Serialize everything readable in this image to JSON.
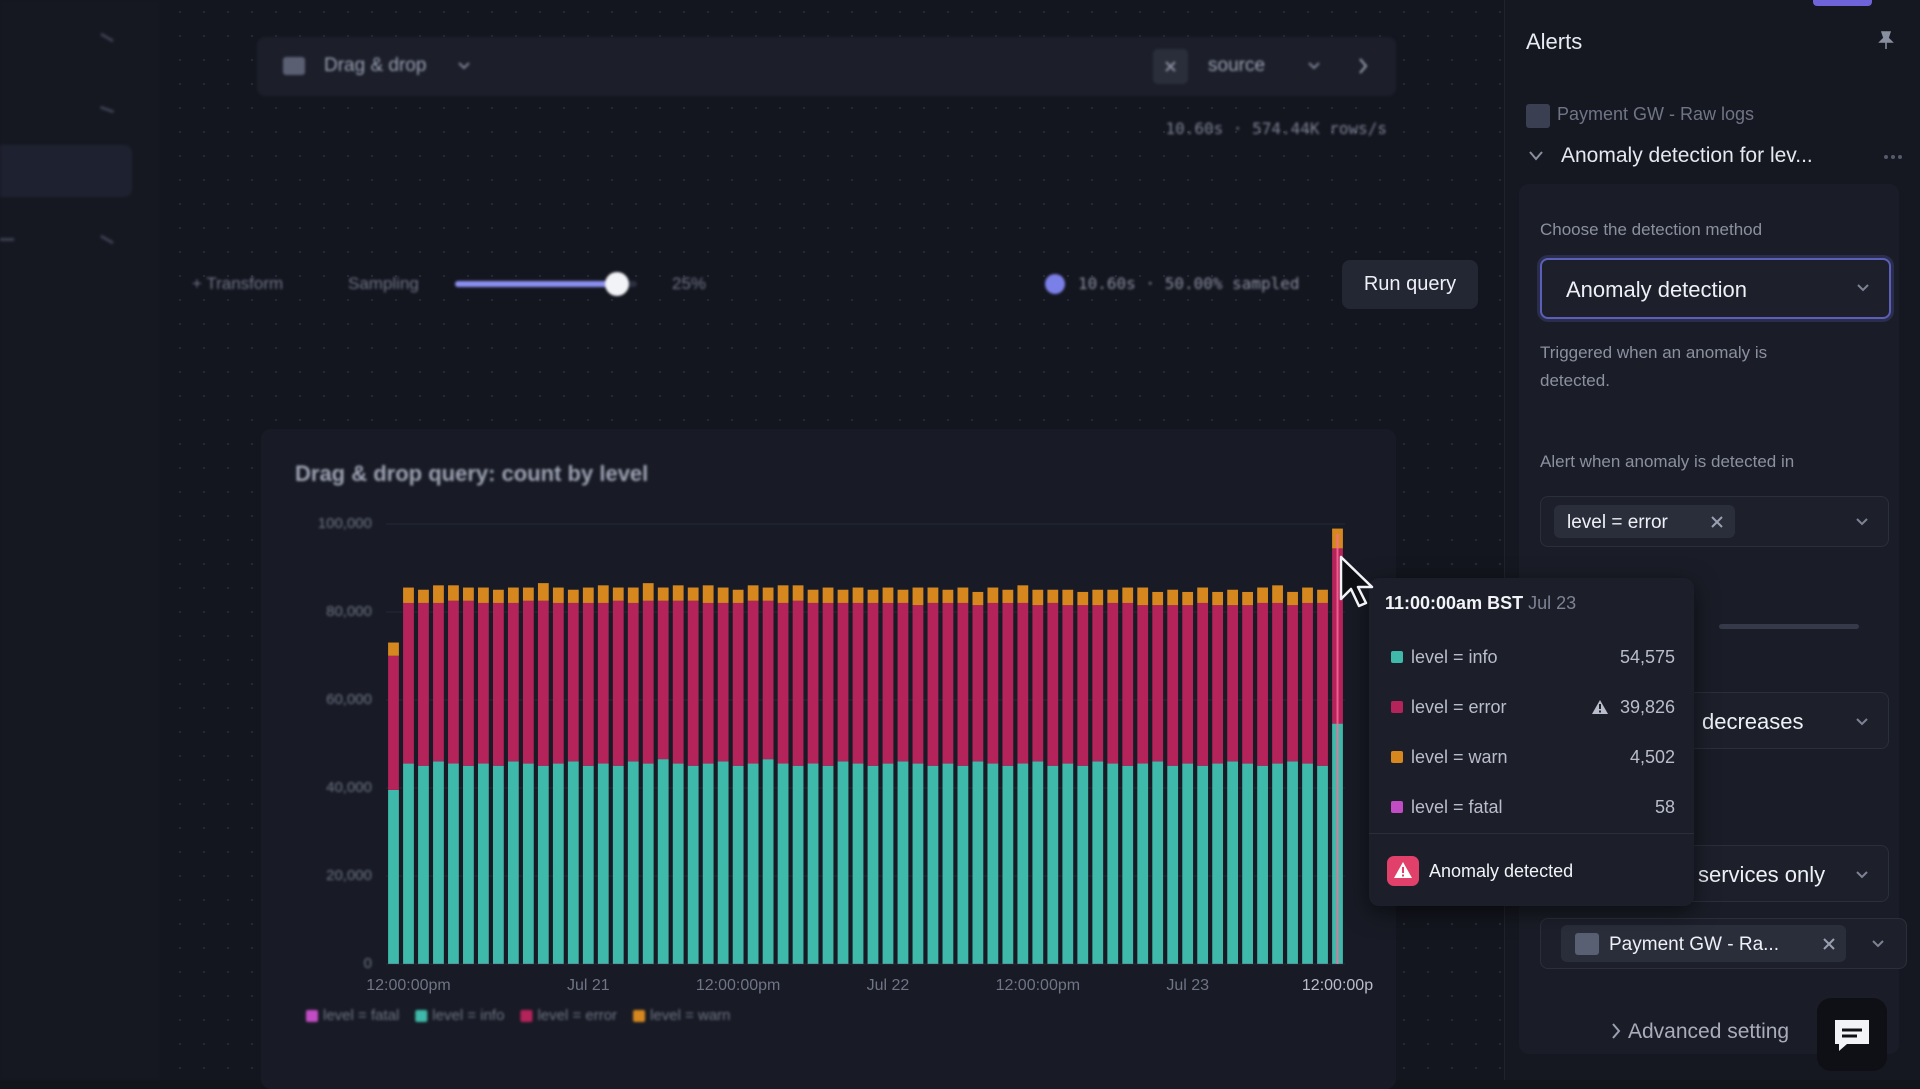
{
  "query_bar": {
    "mode": "Drag & drop",
    "field": "source",
    "stats": "10.60s · 574.44K rows/s"
  },
  "controls": {
    "transform": "+ Transform",
    "sampling": "Sampling",
    "sampling_value": "25%",
    "status": "10.60s · 50.00% sampled",
    "run_button": "Run query"
  },
  "chart_data": {
    "type": "bar",
    "stacked": true,
    "title": "Drag & drop query: count by level",
    "categories": [
      null,
      "12:00:00pm",
      null,
      null,
      null,
      null,
      null,
      null,
      null,
      null,
      null,
      null,
      null,
      "Jul 21",
      null,
      null,
      null,
      null,
      null,
      null,
      null,
      null,
      null,
      "12:00:00pm",
      null,
      null,
      null,
      null,
      null,
      null,
      null,
      null,
      null,
      "Jul 22",
      null,
      null,
      null,
      null,
      null,
      null,
      null,
      null,
      null,
      "12:00:00pm",
      null,
      null,
      null,
      null,
      null,
      null,
      null,
      null,
      null,
      "Jul 23",
      null,
      null,
      null,
      null,
      null,
      null,
      null,
      null,
      null,
      "12:00:00p"
    ],
    "series": [
      {
        "name": "level = fatal",
        "color": "#c24cc4",
        "values": [
          60,
          55,
          62,
          58,
          64,
          57,
          61,
          59,
          60,
          55,
          62,
          58,
          64,
          57,
          61,
          59,
          60,
          55,
          62,
          58,
          64,
          57,
          61,
          59,
          60,
          55,
          62,
          58,
          64,
          57,
          61,
          59,
          60,
          55,
          62,
          58,
          64,
          57,
          61,
          59,
          60,
          55,
          62,
          58,
          64,
          57,
          61,
          59,
          60,
          55,
          62,
          58,
          64,
          57,
          61,
          59,
          60,
          55,
          62,
          58,
          64,
          57,
          61,
          58
        ]
      },
      {
        "name": "level = info",
        "color": "#3fb9a9",
        "values": [
          39500,
          45500,
          45000,
          46000,
          45500,
          45000,
          45500,
          45000,
          46000,
          45500,
          45000,
          45500,
          46000,
          45000,
          45500,
          45000,
          46000,
          45500,
          46500,
          45500,
          45000,
          45500,
          46000,
          45000,
          45500,
          46500,
          45500,
          45000,
          45500,
          45000,
          46000,
          45500,
          45000,
          45500,
          46000,
          45500,
          45000,
          45500,
          45000,
          46000,
          45500,
          45000,
          45500,
          46000,
          45000,
          45500,
          45000,
          46000,
          45500,
          45000,
          45500,
          46000,
          45000,
          45500,
          45000,
          45500,
          46000,
          45500,
          45000,
          45500,
          46000,
          45500,
          45000,
          54575
        ]
      },
      {
        "name": "level = error",
        "color": "#b5235b",
        "values": [
          30500,
          36500,
          37000,
          36000,
          37000,
          37500,
          36500,
          37000,
          36000,
          37000,
          37500,
          36500,
          36000,
          37000,
          36500,
          37500,
          36000,
          37000,
          36000,
          37000,
          37500,
          36500,
          36000,
          37000,
          37000,
          36000,
          36500,
          37500,
          36500,
          37000,
          36000,
          36500,
          37000,
          36500,
          36000,
          36000,
          37000,
          36500,
          37000,
          35500,
          36500,
          37000,
          36500,
          35500,
          37000,
          36000,
          36500,
          35500,
          36500,
          37000,
          36000,
          35500,
          36500,
          36000,
          37000,
          36000,
          35500,
          36000,
          37000,
          36500,
          35500,
          36500,
          37000,
          39826
        ]
      },
      {
        "name": "level = warn",
        "color": "#d6881f",
        "values": [
          3000,
          3500,
          3000,
          4000,
          3500,
          3000,
          3500,
          3000,
          3500,
          3000,
          4000,
          3500,
          3000,
          3500,
          4000,
          3000,
          3500,
          4000,
          3000,
          3500,
          3000,
          4000,
          3500,
          3000,
          3500,
          3000,
          4000,
          3500,
          3000,
          3500,
          3000,
          3500,
          3000,
          3500,
          3000,
          4000,
          3500,
          3000,
          3500,
          3000,
          3500,
          3000,
          4000,
          3500,
          3000,
          3500,
          3000,
          3500,
          3000,
          3500,
          4000,
          3000,
          3500,
          3000,
          3500,
          3000,
          3500,
          3000,
          3500,
          4000,
          3000,
          3500,
          3000,
          4502
        ]
      }
    ],
    "ylim": [
      0,
      100000
    ],
    "yticks": [
      0,
      {
        "value": 20000,
        "label": "20,000"
      },
      {
        "value": 40000,
        "label": "40,000"
      },
      {
        "value": 60000,
        "label": "60,000"
      },
      {
        "value": 80000,
        "label": "80,000"
      },
      {
        "value": 100000,
        "label": "100,000"
      }
    ],
    "grid": true,
    "legend": "bottom"
  },
  "tooltip": {
    "time": "11:00:00am BST",
    "date": "Jul 23",
    "rows": [
      {
        "name": "level = info",
        "value": "54,575"
      },
      {
        "name": "level = error",
        "value": "39,826"
      },
      {
        "name": "level = warn",
        "value": "4,502"
      },
      {
        "name": "level = fatal",
        "value": "58"
      }
    ],
    "alert": "Anomaly detected"
  },
  "alerts_panel": {
    "title": "Alerts",
    "source": "Payment GW - Raw logs",
    "alert_name": "Anomaly detection for lev...",
    "method_label": "Choose the detection method",
    "method": "Anomaly detection",
    "method_description": "Triggered when an anomaly is detected.",
    "scope_label": "Alert when anomaly is detected in",
    "scope_chip": "level = error",
    "direction": "decreases",
    "services": "services only",
    "service_chip": "Payment GW - Ra...",
    "advanced": "Advanced setting"
  }
}
